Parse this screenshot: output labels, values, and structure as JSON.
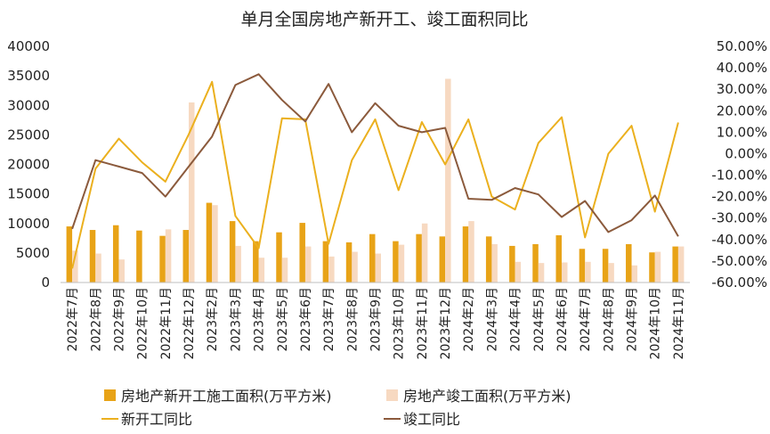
{
  "chart_data": {
    "type": "bar",
    "title": "单月全国房地产新开工、竣工面积同比",
    "categories": [
      "2022年7月",
      "2022年8月",
      "2022年9月",
      "2022年10月",
      "2022年11月",
      "2022年12月",
      "2023年2月",
      "2023年3月",
      "2023年4月",
      "2023年5月",
      "2023年6月",
      "2023年7月",
      "2023年8月",
      "2023年9月",
      "2023年10月",
      "2023年11月",
      "2023年12月",
      "2024年2月",
      "2024年3月",
      "2024年4月",
      "2024年5月",
      "2024年6月",
      "2024年7月",
      "2024年8月",
      "2024年9月",
      "2024年10月",
      "2024年11月"
    ],
    "left_axis": {
      "ylim": [
        0,
        40000
      ],
      "ticks": [
        "0",
        "5000",
        "10000",
        "15000",
        "20000",
        "25000",
        "30000",
        "35000",
        "40000"
      ]
    },
    "right_axis": {
      "ylim": [
        -0.6,
        0.5
      ],
      "ticks": [
        "-60.00%",
        "-50.00%",
        "-40.00%",
        "-30.00%",
        "-20.00%",
        "-10.00%",
        "0.00%",
        "10.00%",
        "20.00%",
        "30.00%",
        "40.00%",
        "50.00%"
      ]
    },
    "series": [
      {
        "name": "房地产新开工施工面积(万平方米)",
        "kind": "bar",
        "axis": "left",
        "color": "#E8A317",
        "values": [
          9500,
          8900,
          9700,
          8800,
          7900,
          8900,
          13500,
          10400,
          7000,
          8500,
          10100,
          7000,
          6800,
          8200,
          7000,
          8200,
          7800,
          9500,
          7800,
          6200,
          6500,
          8000,
          5700,
          5700,
          6500,
          5100,
          6100
        ]
      },
      {
        "name": "房地产竣工面积(万平方米)",
        "kind": "bar",
        "axis": "left",
        "color": "#F7D9C1",
        "values": [
          5400,
          4900,
          3900,
          0,
          9000,
          30500,
          13100,
          6200,
          4200,
          4200,
          6100,
          4400,
          5200,
          4900,
          6400,
          10000,
          34500,
          10400,
          6500,
          3500,
          3300,
          3400,
          3500,
          3300,
          2900,
          5200,
          6100
        ]
      },
      {
        "name": "新开工同比",
        "kind": "line",
        "axis": "right",
        "color": "#EBB01E",
        "values": [
          -0.535,
          -0.07,
          0.07,
          -0.04,
          -0.13,
          0.09,
          0.335,
          -0.29,
          -0.44,
          0.165,
          0.16,
          -0.42,
          -0.03,
          0.16,
          -0.17,
          0.147,
          -0.05,
          0.16,
          -0.2,
          -0.26,
          0.05,
          0.17,
          -0.39,
          0.0,
          0.13,
          -0.27,
          0.145
        ]
      },
      {
        "name": "竣工同比",
        "kind": "line",
        "axis": "right",
        "color": "#8B5A3C",
        "values": [
          -0.35,
          -0.03,
          -0.06,
          -0.09,
          -0.2,
          -0.06,
          0.08,
          0.32,
          0.37,
          0.25,
          0.15,
          0.325,
          0.1,
          0.235,
          0.13,
          0.1,
          0.12,
          -0.21,
          -0.215,
          -0.16,
          -0.19,
          -0.295,
          -0.22,
          -0.365,
          -0.31,
          -0.195,
          -0.385
        ]
      }
    ],
    "legend_position": "bottom",
    "grid": false
  }
}
